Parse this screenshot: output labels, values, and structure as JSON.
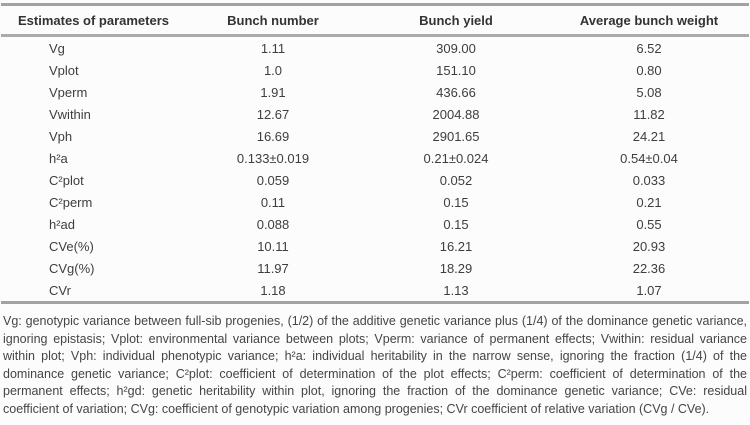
{
  "table": {
    "headers": [
      "Estimates of parameters",
      "Bunch number",
      "Bunch yield",
      "Average bunch weight"
    ],
    "rows": [
      {
        "label": "Vg",
        "values": [
          "1.11",
          "309.00",
          "6.52"
        ]
      },
      {
        "label": "Vplot",
        "values": [
          "1.0",
          "151.10",
          "0.80"
        ]
      },
      {
        "label": "Vperm",
        "values": [
          "1.91",
          "436.66",
          "5.08"
        ]
      },
      {
        "label": "Vwithin",
        "values": [
          "12.67",
          "2004.88",
          "11.82"
        ]
      },
      {
        "label": "Vph",
        "values": [
          "16.69",
          "2901.65",
          "24.21"
        ]
      },
      {
        "label": "h²a",
        "values": [
          "0.133±0.019",
          "0.21±0.024",
          "0.54±0.04"
        ]
      },
      {
        "label": "C²plot",
        "values": [
          "0.059",
          "0.052",
          "0.033"
        ]
      },
      {
        "label": "C²perm",
        "values": [
          "0.11",
          "0.15",
          "0.21"
        ]
      },
      {
        "label": "h²ad",
        "values": [
          "0.088",
          "0.15",
          "0.55"
        ]
      },
      {
        "label": "CVe(%)",
        "values": [
          "10.11",
          "16.21",
          "20.93"
        ]
      },
      {
        "label": "CVg(%)",
        "values": [
          "11.97",
          "18.29",
          "22.36"
        ]
      },
      {
        "label": "CVr",
        "values": [
          "1.18",
          "1.13",
          "1.07"
        ]
      }
    ]
  },
  "footnote": "Vg: genotypic variance between full-sib progenies, (1/2) of the additive genetic variance plus (1/4) of the dominance genetic variance, ignoring epistasis; Vplot: environmental variance between plots; Vperm: variance of permanent effects; Vwithin: residual variance within plot; Vph: individual phenotypic variance; h²a: individual heritability in the narrow sense, ignoring the fraction (1/4) of the dominance genetic variance; C²plot: coefficient of determination of the plot effects; C²perm: coefficient of determination of the permanent effects; h²gd: genetic heritability within plot, ignoring the fraction of the dominance genetic variance; CVe: residual coefficient of variation; CVg: coefficient of genotypic variation among progenies; CVr coefficient of relative variation (CVg / CVe).",
  "colors": {
    "rule": "#a2a2a2",
    "header_text": "#333333",
    "body_text": "#3e3e3e",
    "background": "#fcfcfc"
  }
}
